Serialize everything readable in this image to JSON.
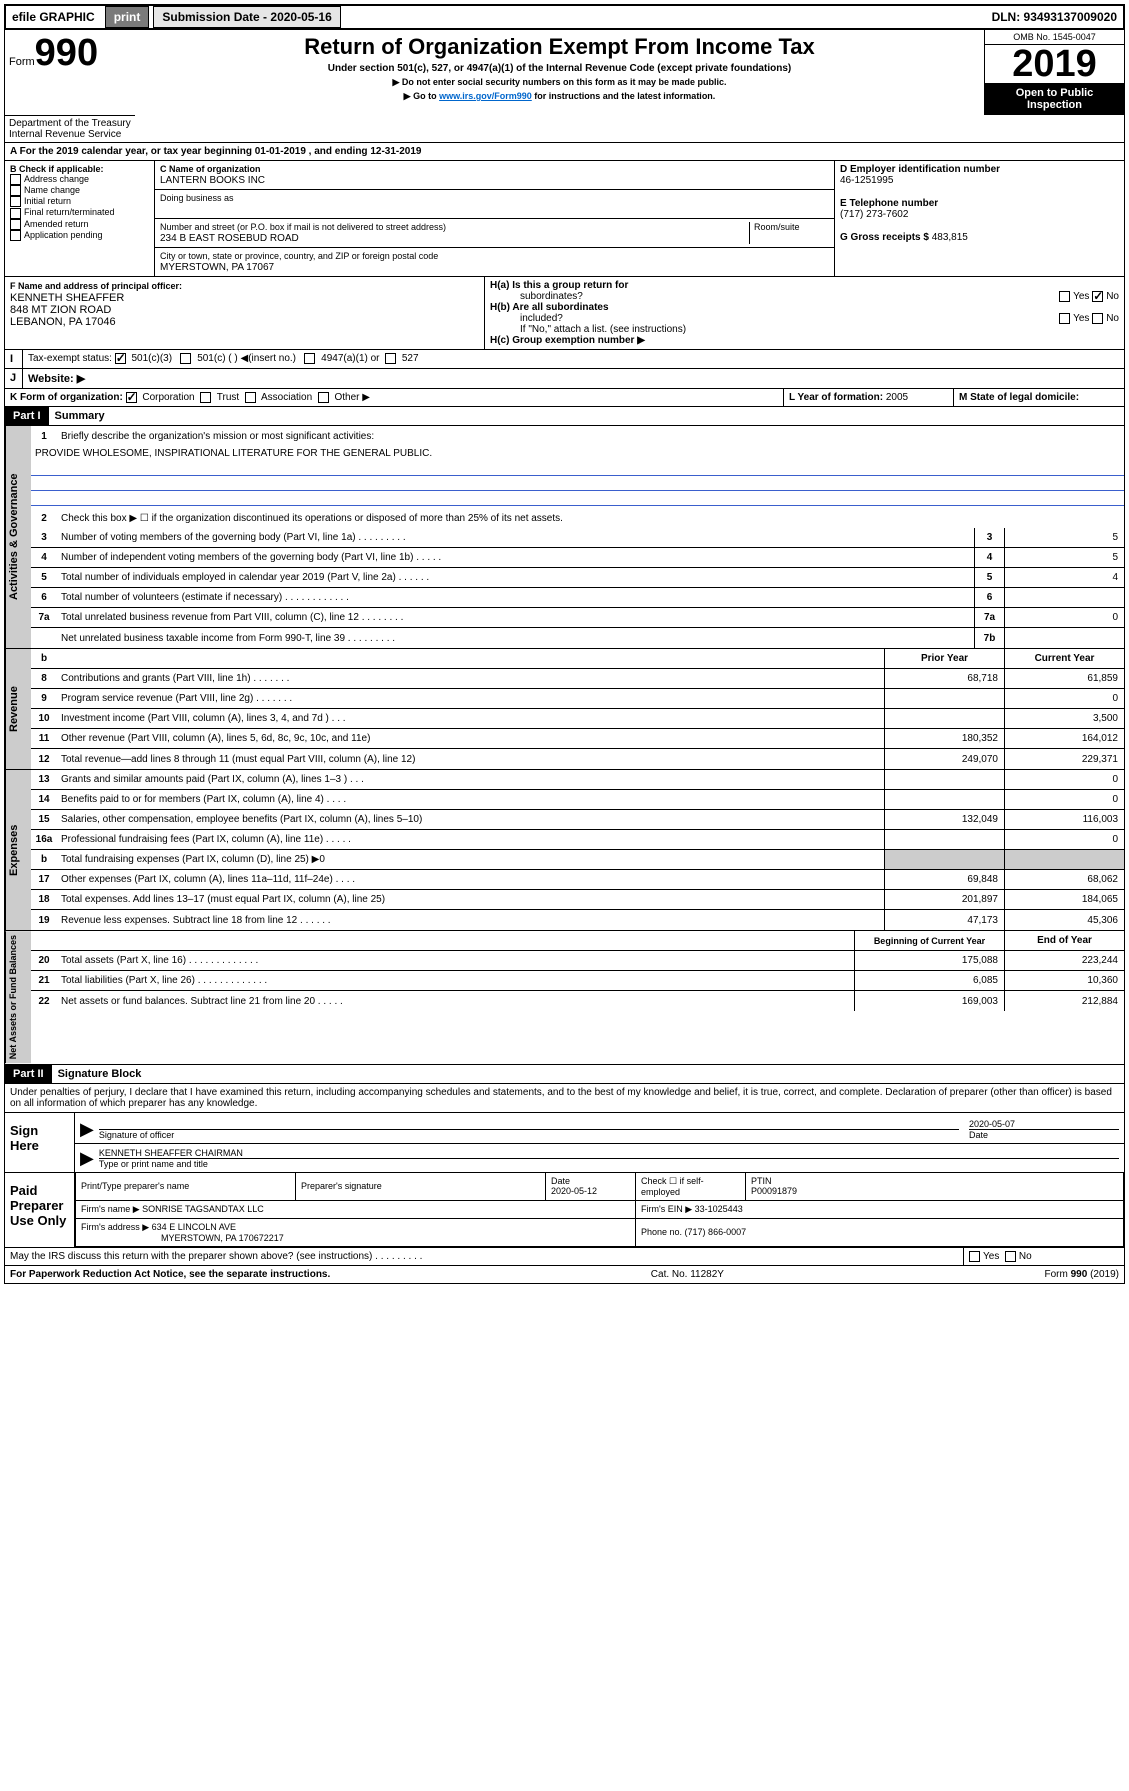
{
  "topbar": {
    "efile": "efile GRAPHIC",
    "print": "print",
    "subLabel": "Submission Date - ",
    "subDate": "2020-05-16",
    "dln": "DLN: 93493137009020"
  },
  "header": {
    "formWord": "Form",
    "formNum": "990",
    "title": "Return of Organization Exempt From Income Tax",
    "sub1": "Under section 501(c), 527, or 4947(a)(1) of the Internal Revenue Code (except private foundations)",
    "sub2": "▶ Do not enter social security numbers on this form as it may be made public.",
    "sub3a": "▶ Go to ",
    "sub3link": "www.irs.gov/Form990",
    "sub3b": " for instructions and the latest information.",
    "omb": "OMB No. 1545-0047",
    "year": "2019",
    "open1": "Open to Public",
    "open2": "Inspection",
    "dept": "Department of the Treasury",
    "irs": "Internal Revenue Service"
  },
  "sectionA": {
    "text": "A For the 2019 calendar year, or tax year beginning 01-01-2019    , and ending 12-31-2019"
  },
  "boxB": {
    "label": "B Check if applicable:",
    "items": [
      "Address change",
      "Name change",
      "Initial return",
      "Final return/terminated",
      "Amended return",
      "Application pending"
    ]
  },
  "boxC": {
    "nameLabel": "C Name of organization",
    "orgName": "LANTERN BOOKS INC",
    "dba": "Doing business as",
    "addrLabel": "Number and street (or P.O. box if mail is not delivered to street address)",
    "room": "Room/suite",
    "addr": "234 B EAST ROSEBUD ROAD",
    "cityLabel": "City or town, state or province, country, and ZIP or foreign postal code",
    "city": "MYERSTOWN, PA  17067"
  },
  "boxD": {
    "label": "D Employer identification number",
    "ein": "46-1251995"
  },
  "boxE": {
    "label": "E Telephone number",
    "phone": "(717) 273-7602"
  },
  "boxG": {
    "label": "G Gross receipts $ ",
    "val": "483,815"
  },
  "boxF": {
    "label": "F  Name and address of principal officer:",
    "name": "KENNETH SHEAFFER",
    "addr1": "848 MT ZION ROAD",
    "addr2": "LEBANON, PA  17046"
  },
  "boxH": {
    "a": "H(a)  Is this a group return for",
    "a2": "subordinates?",
    "yes": "Yes",
    "no": "No",
    "b": "H(b)  Are all subordinates",
    "b2": "included?",
    "bNote": "If \"No,\" attach a list. (see instructions)",
    "c": "H(c)  Group exemption number ▶"
  },
  "boxI": {
    "label": "Tax-exempt status:",
    "c501c3": "501(c)(3)",
    "c501c": "501(c) (  ) ◀(insert no.)",
    "c4947": "4947(a)(1) or",
    "c527": "527"
  },
  "boxJ": {
    "label": "Website: ▶"
  },
  "boxK": {
    "label": "K Form of organization:",
    "corp": "Corporation",
    "trust": "Trust",
    "assoc": "Association",
    "other": "Other ▶"
  },
  "boxL": {
    "label": "L Year of formation: ",
    "val": "2005"
  },
  "boxM": {
    "label": "M State of legal domicile:"
  },
  "part1": {
    "badge": "Part I",
    "title": "Summary"
  },
  "gov": {
    "sideLabel": "Activities & Governance",
    "l1": "Briefly describe the organization's mission or most significant activities:",
    "mission": "PROVIDE WHOLESOME, INSPIRATIONAL LITERATURE FOR THE GENERAL PUBLIC.",
    "l2": "Check this box ▶ ☐  if the organization discontinued its operations or disposed of more than 25% of its net assets.",
    "l3": "Number of voting members of the governing body (Part VI, line 1a)   .    .    .    .    .    .    .    .    .",
    "v3": "5",
    "l4": "Number of independent voting members of the governing body (Part VI, line 1b)   .    .    .    .    .",
    "v4": "5",
    "l5": "Total number of individuals employed in calendar year 2019 (Part V, line 2a)   .    .    .    .    .    .",
    "v5": "4",
    "l6": "Total number of volunteers (estimate if necessary)   .    .    .    .    .    .    .    .    .    .    .    .",
    "v6": "",
    "l7a": "Total unrelated business revenue from Part VIII, column (C), line 12   .    .    .    .    .    .    .    .",
    "v7a": "0",
    "l7b": "Net unrelated business taxable income from Form 990-T, line 39   .    .    .    .    .    .    .    .    .",
    "v7b": ""
  },
  "rev": {
    "sideLabel": "Revenue",
    "priorHdr": "Prior Year",
    "currHdr": "Current Year",
    "rows": [
      {
        "n": "8",
        "t": "Contributions and grants (Part VIII, line 1h)   .    .    .    .    .    .    .",
        "p": "68,718",
        "c": "61,859"
      },
      {
        "n": "9",
        "t": "Program service revenue (Part VIII, line 2g)   .    .    .    .    .    .    .",
        "p": "",
        "c": "0"
      },
      {
        "n": "10",
        "t": "Investment income (Part VIII, column (A), lines 3, 4, and 7d )   .    .    .",
        "p": "",
        "c": "3,500"
      },
      {
        "n": "11",
        "t": "Other revenue (Part VIII, column (A), lines 5, 6d, 8c, 9c, 10c, and 11e)",
        "p": "180,352",
        "c": "164,012"
      },
      {
        "n": "12",
        "t": "Total revenue—add lines 8 through 11 (must equal Part VIII, column (A), line 12)",
        "p": "249,070",
        "c": "229,371"
      }
    ]
  },
  "exp": {
    "sideLabel": "Expenses",
    "rows": [
      {
        "n": "13",
        "t": "Grants and similar amounts paid (Part IX, column (A), lines 1–3 )   .    .    .",
        "p": "",
        "c": "0"
      },
      {
        "n": "14",
        "t": "Benefits paid to or for members (Part IX, column (A), line 4)   .    .    .    .",
        "p": "",
        "c": "0"
      },
      {
        "n": "15",
        "t": "Salaries, other compensation, employee benefits (Part IX, column (A), lines 5–10)",
        "p": "132,049",
        "c": "116,003"
      },
      {
        "n": "16a",
        "t": "Professional fundraising fees (Part IX, column (A), line 11e)   .    .    .    .    .",
        "p": "",
        "c": "0"
      },
      {
        "n": "b",
        "t": "Total fundraising expenses (Part IX, column (D), line 25) ▶0",
        "p": "grey",
        "c": "grey"
      },
      {
        "n": "17",
        "t": "Other expenses (Part IX, column (A), lines 11a–11d, 11f–24e)   .    .    .    .",
        "p": "69,848",
        "c": "68,062"
      },
      {
        "n": "18",
        "t": "Total expenses. Add lines 13–17 (must equal Part IX, column (A), line 25)",
        "p": "201,897",
        "c": "184,065"
      },
      {
        "n": "19",
        "t": "Revenue less expenses. Subtract line 18 from line 12   .    .    .    .    .    .",
        "p": "47,173",
        "c": "45,306"
      }
    ]
  },
  "net": {
    "sideLabel": "Net Assets or Fund Balances",
    "begHdr": "Beginning of Current Year",
    "endHdr": "End of Year",
    "rows": [
      {
        "n": "20",
        "t": "Total assets (Part X, line 16)   .    .    .    .    .    .    .    .    .    .    .    .    .",
        "p": "175,088",
        "c": "223,244"
      },
      {
        "n": "21",
        "t": "Total liabilities (Part X, line 26)   .    .    .    .    .    .    .    .    .    .    .    .    .",
        "p": "6,085",
        "c": "10,360"
      },
      {
        "n": "22",
        "t": "Net assets or fund balances. Subtract line 21 from line 20   .    .    .    .    .",
        "p": "169,003",
        "c": "212,884"
      }
    ]
  },
  "part2": {
    "badge": "Part II",
    "title": "Signature Block",
    "perjury": "Under penalties of perjury, I declare that I have examined this return, including accompanying schedules and statements, and to the best of my knowledge and belief, it is true, correct, and complete. Declaration of preparer (other than officer) is based on all information of which preparer has any knowledge."
  },
  "sign": {
    "here": "Sign Here",
    "sigOf": "Signature of officer",
    "date": "2020-05-07",
    "dateLbl": "Date",
    "name": "KENNETH SHEAFFER CHAIRMAN",
    "typeLbl": "Type or print name and title"
  },
  "paid": {
    "label": "Paid Preparer Use Only",
    "h1": "Print/Type preparer's name",
    "h2": "Preparer's signature",
    "h3": "Date",
    "h4": "Check ☐ if self-employed",
    "h5": "PTIN",
    "date": "2020-05-12",
    "ptin": "P00091879",
    "firmLbl": "Firm's name    ▶",
    "firm": "SONRISE TAGSANDTAX LLC",
    "einLbl": "Firm's EIN ▶",
    "ein": "33-1025443",
    "addrLbl": "Firm's address ▶",
    "addr1": "634 E LINCOLN AVE",
    "addr2": "MYERSTOWN, PA  170672217",
    "phoneLbl": "Phone no. ",
    "phone": "(717) 866-0007"
  },
  "discuss": {
    "txt": "May the IRS discuss this return with the preparer shown above? (see instructions)    .    .    .    .    .    .    .    .    .",
    "yes": "Yes",
    "no": "No"
  },
  "footer": {
    "pra": "For Paperwork Reduction Act Notice, see the separate instructions.",
    "cat": "Cat. No. 11282Y",
    "form": "Form 990 (2019)"
  }
}
